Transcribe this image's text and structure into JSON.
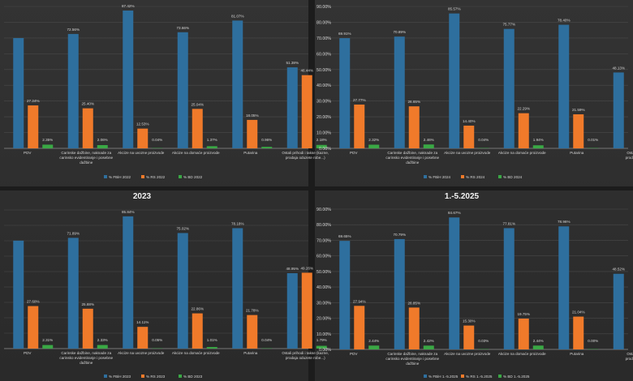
{
  "colors": {
    "fbih": "#2e6f9e",
    "rs": "#f07a2a",
    "bd": "#3aa845"
  },
  "chart_data": [
    {
      "type": "bar",
      "title": "",
      "categories": [
        "PDV",
        "Carinske dažbine, naknade za carinsko evidentiranje i posebne dažbine",
        "Akcize na uvozne proizvode",
        "Akcize na domaće proizvode",
        "Putarina",
        "Ostali prihodi i takse (kazne, prodaja oduzete robe...)"
      ],
      "category_labels": [
        [
          "PDV"
        ],
        [
          "Carinske dažbine, naknade za",
          "carinsko evidentiranje i posebne",
          "dažbine"
        ],
        [
          "Akcize na uvozne proizvode"
        ],
        [
          "Akcize na domaće proizvode"
        ],
        [
          "Putarina"
        ],
        [
          "Ostali prihodi i takse (kazne,",
          "prodaja oduzete robe...)"
        ]
      ],
      "series": [
        {
          "name": "% FBiH 2022",
          "values": [
            69.97,
            72.56,
            87.42,
            73.66,
            81.07,
            51.38
          ]
        },
        {
          "name": "% RS 2022",
          "values": [
            27.24,
            25.4,
            12.53,
            25.04,
            18.05,
            46.44
          ]
        },
        {
          "name": "% BD 2022",
          "values": [
            2.35,
            2.06,
            0.04,
            1.37,
            0.96,
            2.18
          ]
        }
      ],
      "labels": [
        [
          "",
          "72.56%",
          "87.42%",
          "73.66%",
          "81.07%",
          "51.38%"
        ],
        [
          "27.24%",
          "25.40%",
          "12.53%",
          "25.04%",
          "18.05%",
          "46.44%"
        ],
        [
          "2.35%",
          "2.06%",
          "0.04%",
          "1.37%",
          "0.96%",
          "2.18%"
        ]
      ],
      "ylim": [
        0,
        90
      ]
    },
    {
      "type": "bar",
      "title": "",
      "categories": [
        "PDV",
        "Carinske dažbine, naknade za carinsko evidentiranje i posebne dažbine",
        "Akcize na uvozne proizvode",
        "Akcize na domaće proizvode",
        "Putarina",
        "Ostali prihodi i takse (kazne, prodaja oduzete robe...)"
      ],
      "category_labels": [
        [
          "PDV"
        ],
        [
          "Carinske dažbine, naknade za",
          "carinsko evidentiranje i posebne",
          "dažbine"
        ],
        [
          "Akcize na uvozne proizvode"
        ],
        [
          "Akcize na domaće proizvode"
        ],
        [
          "Putarina"
        ],
        [
          "Ostali",
          "prodaja"
        ]
      ],
      "series": [
        {
          "name": "% FBiH 2024",
          "values": [
            69.91,
            70.89,
            85.57,
            75.77,
            78.4,
            48.13
          ]
        },
        {
          "name": "% RS 2024",
          "values": [
            27.77,
            26.65,
            14.4,
            22.29,
            21.59,
            null
          ]
        },
        {
          "name": "% BD 2024",
          "values": [
            2.32,
            2.46,
            0.04,
            1.94,
            0.01,
            null
          ]
        }
      ],
      "labels": [
        [
          "69.91%",
          "70.89%",
          "85.57%",
          "75.77%",
          "78.40%",
          "48.13%"
        ],
        [
          "27.77%",
          "26.65%",
          "14.40%",
          "22.29%",
          "21.59%",
          ""
        ],
        [
          "2.32%",
          "2.46%",
          "0.04%",
          "1.94%",
          "0.01%",
          ""
        ]
      ],
      "yticks": [
        "0.00%",
        "10.00%",
        "20.00%",
        "30.00%",
        "40.00%",
        "50.00%",
        "60.00%",
        "70.00%",
        "80.00%",
        "90.00%"
      ],
      "ylim": [
        0,
        90
      ]
    },
    {
      "type": "bar",
      "title": "2023",
      "categories": [
        "PDV",
        "Carinske dažbine, naknade za carinsko evidentiranje i posebne dažbine",
        "Akcize na uvozne proizvode",
        "Akcize na domaće proizvode",
        "Putarina",
        "Ostali prihodi i takse (kazne, prodaja oduzete robe...)"
      ],
      "category_labels": [
        [
          "PDV"
        ],
        [
          "Carinske dažbine, naknade za",
          "carinsko evidentiranje i posebne",
          "dažbine"
        ],
        [
          "Akcize na uvozne proizvode"
        ],
        [
          "Akcize na domaće proizvode"
        ],
        [
          "Putarina"
        ],
        [
          "Ostali prihodi i takse (kazne,",
          "prodaja oduzete robe...)"
        ]
      ],
      "series": [
        {
          "name": "% FBiH 2023",
          "values": [
            70.09,
            71.89,
            85.84,
            75.02,
            78.18,
            48.95
          ]
        },
        {
          "name": "% RS 2023",
          "values": [
            27.6,
            25.88,
            14.11,
            22.86,
            21.78,
            49.26
          ]
        },
        {
          "name": "% BD 2023",
          "values": [
            2.31,
            2.33,
            0.05,
            1.01,
            0.04,
            1.79
          ]
        }
      ],
      "labels": [
        [
          "",
          "71.89%",
          "85.84%",
          "75.02%",
          "78.18%",
          "48.95%"
        ],
        [
          "27.60%",
          "25.88%",
          "14.11%",
          "22.86%",
          "21.78%",
          "49.26%"
        ],
        [
          "2.31%",
          "2.33%",
          "0.05%",
          "1.01%",
          "0.04%",
          "1.79%"
        ]
      ],
      "ylim": [
        0,
        90
      ]
    },
    {
      "type": "bar",
      "title": "1.-5.2025",
      "categories": [
        "PDV",
        "Carinske dažbine, naknade za carinsko evidentiranje i posebne dažbine",
        "Akcize na uvozne proizvode",
        "Akcize na domaće proizvode",
        "Putarina",
        "Ostali prihodi i takse (kazne, prodaja oduzete robe...)"
      ],
      "category_labels": [
        [
          "PDV"
        ],
        [
          "Carinske dažbine, naknade za",
          "carinsko evidentiranje i posebne",
          "dažbine"
        ],
        [
          "Akcize na uvozne proizvode"
        ],
        [
          "Akcize na domaće proizvode"
        ],
        [
          "Putarina"
        ],
        [
          "Ostali",
          "prodaja"
        ]
      ],
      "series": [
        {
          "name": "% FBiH 1.-5.2025",
          "values": [
            69.65,
            70.79,
            84.67,
            77.81,
            78.96,
            48.52
          ]
        },
        {
          "name": "% RS 1.-5.2025",
          "values": [
            27.94,
            26.85,
            15.3,
            19.75,
            21.04,
            null
          ]
        },
        {
          "name": "% BD 1.-5.2025",
          "values": [
            2.44,
            2.42,
            0.03,
            2.44,
            0.0,
            null
          ]
        }
      ],
      "labels": [
        [
          "69.65%",
          "70.79%",
          "84.67%",
          "77.81%",
          "78.96%",
          "48.52%"
        ],
        [
          "27.94%",
          "26.85%",
          "15.30%",
          "19.75%",
          "21.04%",
          ""
        ],
        [
          "2.44%",
          "2.42%",
          "0.03%",
          "2.44%",
          "0.00%",
          ""
        ]
      ],
      "yticks": [
        "0.00%",
        "10.00%",
        "20.00%",
        "30.00%",
        "40.00%",
        "50.00%",
        "60.00%",
        "70.00%",
        "80.00%",
        "90.00%"
      ],
      "ylim": [
        0,
        90
      ]
    }
  ]
}
